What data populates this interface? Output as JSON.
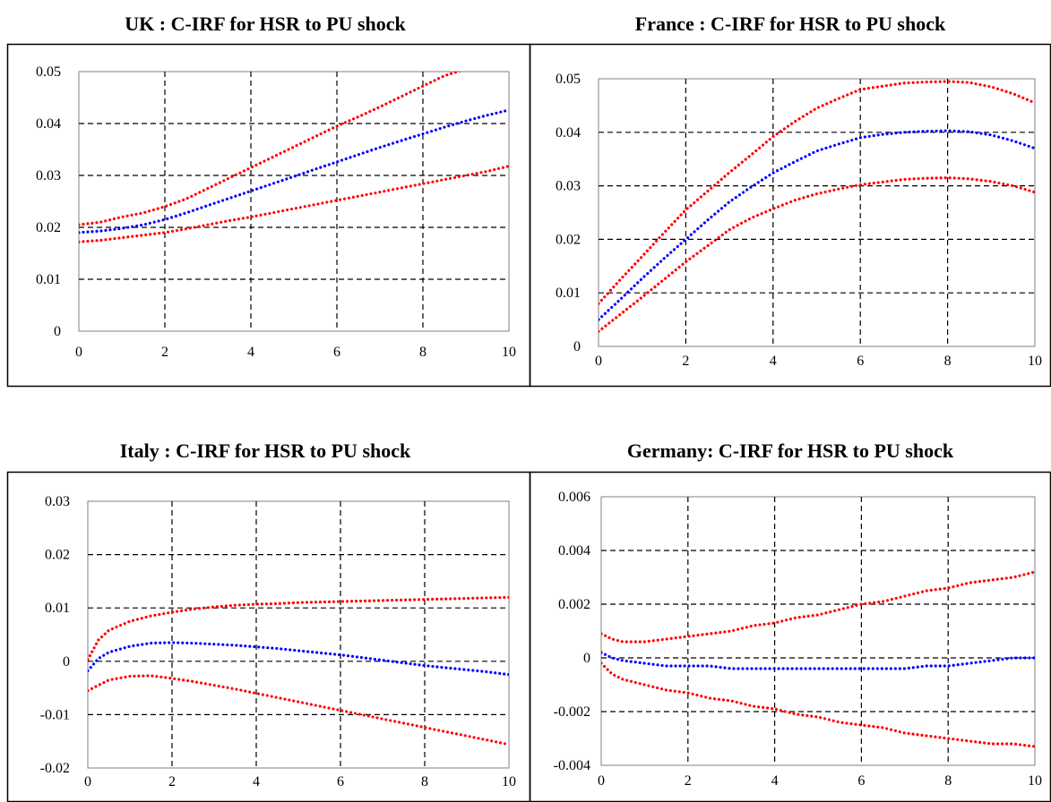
{
  "chart_data": [
    {
      "type": "line",
      "title": "UK : C-IRF for HSR to PU shock",
      "x": [
        0,
        0.5,
        1,
        1.5,
        2,
        2.5,
        3,
        3.5,
        4,
        4.5,
        5,
        5.5,
        6,
        6.5,
        7,
        7.5,
        8,
        8.5,
        9,
        9.5,
        10
      ],
      "series": [
        {
          "values": [
            0.0205,
            0.021,
            0.022,
            0.0228,
            0.024,
            0.0255,
            0.0275,
            0.0295,
            0.0315,
            0.0335,
            0.0355,
            0.0375,
            0.0395,
            0.0413,
            0.0432,
            0.0452,
            0.0472,
            0.0492,
            0.0505,
            null,
            null
          ]
        },
        {
          "values": [
            0.019,
            0.0193,
            0.0198,
            0.0205,
            0.0215,
            0.0228,
            0.0242,
            0.0256,
            0.027,
            0.0284,
            0.0298,
            0.0312,
            0.0326,
            0.034,
            0.0354,
            0.0367,
            0.038,
            0.0393,
            0.0405,
            0.0416,
            0.0426
          ]
        },
        {
          "values": [
            0.0172,
            0.0175,
            0.018,
            0.0185,
            0.019,
            0.0197,
            0.0205,
            0.0213,
            0.022,
            0.0228,
            0.0236,
            0.0244,
            0.0252,
            0.026,
            0.0268,
            0.0276,
            0.0284,
            0.0292,
            0.03,
            0.0308,
            0.0318
          ]
        }
      ],
      "xlim": [
        0,
        10
      ],
      "ylim": [
        0,
        0.05
      ],
      "xticks": [
        "0",
        "2",
        "4",
        "6",
        "8",
        "10"
      ],
      "yticks": [
        "0",
        "0.01",
        "0.02",
        "0.03",
        "0.04",
        "0.05"
      ],
      "grid": true
    },
    {
      "type": "line",
      "title": "France : C-IRF for HSR to PU shock",
      "x": [
        0,
        0.5,
        1,
        1.5,
        2,
        2.5,
        3,
        3.5,
        4,
        4.5,
        5,
        5.5,
        6,
        6.5,
        7,
        7.5,
        8,
        8.5,
        9,
        9.5,
        10
      ],
      "series": [
        {
          "values": [
            0.008,
            0.0125,
            0.0168,
            0.0212,
            0.0255,
            0.029,
            0.0325,
            0.0358,
            0.0392,
            0.042,
            0.0445,
            0.0463,
            0.048,
            0.0486,
            0.0492,
            0.0494,
            0.0495,
            0.0493,
            0.0485,
            0.0472,
            0.0455
          ]
        },
        {
          "values": [
            0.005,
            0.0088,
            0.0127,
            0.0164,
            0.02,
            0.0236,
            0.027,
            0.0298,
            0.0324,
            0.0345,
            0.0365,
            0.0378,
            0.039,
            0.0396,
            0.04,
            0.0402,
            0.0403,
            0.0401,
            0.0395,
            0.0384,
            0.037
          ]
        },
        {
          "values": [
            0.0028,
            0.006,
            0.0092,
            0.0125,
            0.0158,
            0.0188,
            0.0218,
            0.024,
            0.0257,
            0.0273,
            0.0285,
            0.0294,
            0.0302,
            0.0307,
            0.0312,
            0.0314,
            0.0315,
            0.0313,
            0.0308,
            0.03,
            0.0288
          ]
        }
      ],
      "xlim": [
        0,
        10
      ],
      "ylim": [
        0,
        0.05
      ],
      "xticks": [
        "0",
        "2",
        "4",
        "6",
        "8",
        "10"
      ],
      "yticks": [
        "0",
        "0.01",
        "0.02",
        "0.03",
        "0.04",
        "0.05"
      ],
      "grid": true
    },
    {
      "type": "line",
      "title": "Italy : C-IRF for HSR to PU shock",
      "x": [
        0,
        0.25,
        0.5,
        1,
        1.5,
        2,
        2.5,
        3,
        3.5,
        4,
        4.5,
        5,
        5.5,
        6,
        6.5,
        7,
        7.5,
        8,
        8.5,
        9,
        9.5,
        10
      ],
      "series": [
        {
          "values": [
            0.0003,
            0.004,
            0.0058,
            0.0075,
            0.0085,
            0.0092,
            0.0098,
            0.0102,
            0.0105,
            0.0107,
            0.0108,
            0.011,
            0.0111,
            0.0112,
            0.0113,
            0.0114,
            0.0115,
            0.0116,
            0.0117,
            0.0118,
            0.0119,
            0.012
          ]
        },
        {
          "values": [
            -0.0018,
            0.0005,
            0.0017,
            0.0028,
            0.0034,
            0.0035,
            0.0034,
            0.0032,
            0.003,
            0.0027,
            0.0024,
            0.002,
            0.0016,
            0.0012,
            0.0007,
            0.0002,
            -0.0003,
            -0.0008,
            -0.0012,
            -0.0016,
            -0.002,
            -0.0025
          ]
        },
        {
          "values": [
            -0.0055,
            -0.0045,
            -0.0035,
            -0.0028,
            -0.0027,
            -0.0032,
            -0.0038,
            -0.0045,
            -0.0052,
            -0.006,
            -0.0068,
            -0.0076,
            -0.0084,
            -0.0092,
            -0.01,
            -0.0108,
            -0.0116,
            -0.0124,
            -0.0132,
            -0.014,
            -0.0148,
            -0.0156
          ]
        }
      ],
      "xlim": [
        0,
        10
      ],
      "ylim": [
        -0.02,
        0.03
      ],
      "xticks": [
        "0",
        "2",
        "4",
        "6",
        "8",
        "10"
      ],
      "yticks": [
        "-0.02",
        "-0.01",
        "0",
        "0.01",
        "0.02",
        "0.03"
      ],
      "grid": true
    },
    {
      "type": "line",
      "title": "Germany: C-IRF for HSR to PU shock",
      "x": [
        0,
        0.25,
        0.5,
        1,
        1.5,
        2,
        2.5,
        3,
        3.5,
        4,
        4.5,
        5,
        5.5,
        6,
        6.5,
        7,
        7.5,
        8,
        8.5,
        9,
        9.5,
        10
      ],
      "series": [
        {
          "values": [
            0.0009,
            0.0007,
            0.0006,
            0.0006,
            0.0007,
            0.0008,
            0.0009,
            0.001,
            0.0012,
            0.0013,
            0.0015,
            0.0016,
            0.0018,
            0.002,
            0.0021,
            0.0023,
            0.0025,
            0.0026,
            0.0028,
            0.0029,
            0.003,
            0.0032
          ]
        },
        {
          "values": [
            0.0002,
            0.0,
            -0.0001,
            -0.0002,
            -0.0003,
            -0.0003,
            -0.0003,
            -0.0004,
            -0.0004,
            -0.0004,
            -0.0004,
            -0.0004,
            -0.0004,
            -0.0004,
            -0.0004,
            -0.0004,
            -0.0003,
            -0.0003,
            -0.0002,
            -0.0001,
            0.0,
            0.0
          ]
        },
        {
          "values": [
            -0.0002,
            -0.0006,
            -0.0008,
            -0.001,
            -0.0012,
            -0.0013,
            -0.0015,
            -0.0016,
            -0.0018,
            -0.0019,
            -0.0021,
            -0.0022,
            -0.0024,
            -0.0025,
            -0.0026,
            -0.0028,
            -0.0029,
            -0.003,
            -0.0031,
            -0.0032,
            -0.0032,
            -0.0033
          ]
        }
      ],
      "xlim": [
        0,
        10
      ],
      "ylim": [
        -0.004,
        0.006
      ],
      "xticks": [
        "0",
        "2",
        "4",
        "6",
        "8",
        "10"
      ],
      "yticks": [
        "-0.004",
        "-0.002",
        "0",
        "0.002",
        "0.004",
        "0.006"
      ],
      "grid": true
    }
  ],
  "colors": {
    "band": "#ff0000",
    "median": "#0000ff",
    "grid": "#000000"
  }
}
